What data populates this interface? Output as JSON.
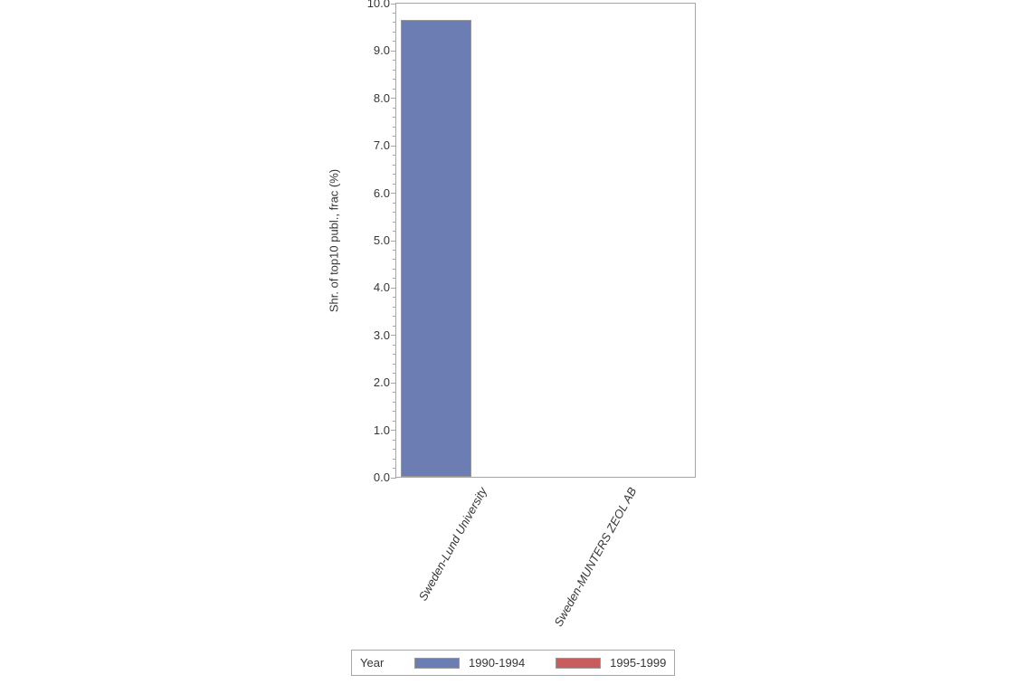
{
  "chart_data": {
    "type": "bar",
    "title": "",
    "ylabel": "Shr. of top10 publ., frac (%)",
    "xlabel": "",
    "ylim": [
      0.0,
      10.0
    ],
    "ytick_step": 1.0,
    "ytick_minor_step": 0.2,
    "ytick_decimals": 1,
    "grid": false,
    "categories": [
      "Sweden-Lund University",
      "Sweden-MUNTERS ZEOL AB"
    ],
    "series": [
      {
        "name": "1990-1994",
        "color": "#6B7DB3",
        "values": [
          9.63,
          0
        ]
      },
      {
        "name": "1995-1999",
        "color": "#C95C5C",
        "values": [
          0,
          0
        ]
      }
    ],
    "legend": {
      "title": "Year",
      "position": "bottom",
      "entries": [
        "1990-1994",
        "1995-1999"
      ]
    },
    "axis_color": "#a6a6a6",
    "bar_outline_color": "#989898",
    "text_color": "#363636",
    "background": "#ffffff"
  }
}
